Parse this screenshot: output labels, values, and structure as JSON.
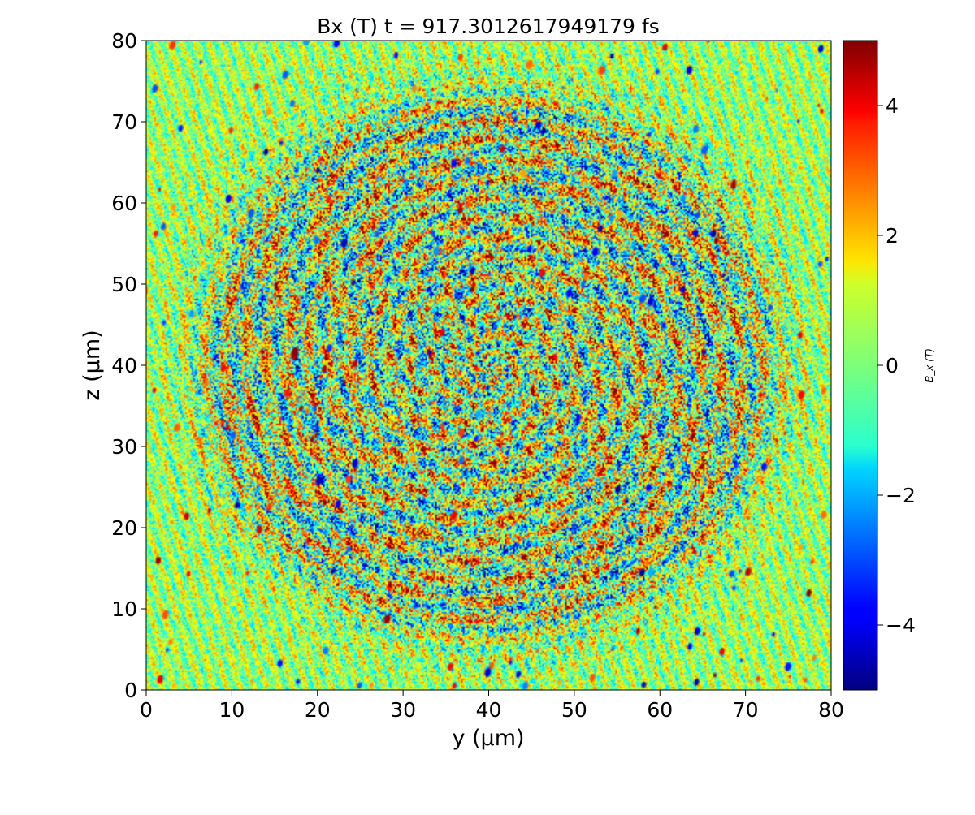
{
  "chart_data": {
    "type": "heatmap",
    "title": "Bx (T)  t = 917.3012617949179 fs",
    "xlabel": "y",
    "xlabel_unit": "(μm)",
    "ylabel": "z",
    "ylabel_unit": "(μm)",
    "xlim": [
      0,
      80
    ],
    "ylim": [
      0,
      80
    ],
    "x_ticks": [
      0,
      10,
      20,
      30,
      40,
      50,
      60,
      70,
      80
    ],
    "y_ticks": [
      0,
      10,
      20,
      30,
      40,
      50,
      60,
      70,
      80
    ],
    "x_tick_labels": [
      "0",
      "10",
      "20",
      "30",
      "40",
      "50",
      "60",
      "70",
      "80"
    ],
    "y_tick_labels": [
      "0",
      "10",
      "20",
      "30",
      "40",
      "50",
      "60",
      "70",
      "80"
    ],
    "colormap": "jet",
    "colorbar": {
      "label": "B_x (T)",
      "min": -5,
      "max": 5,
      "ticks": [
        -4,
        -2,
        0,
        2,
        4
      ],
      "tick_labels": [
        "−4",
        "−2",
        "0",
        "2",
        "4"
      ],
      "placement": "right"
    },
    "pattern": "noisy field fluctuating between about −5 and 5 T, with concentric ring structure centred near y = 40 μm, z = 40 μm; largest rings reach about 32 μm radius",
    "grid": false
  }
}
